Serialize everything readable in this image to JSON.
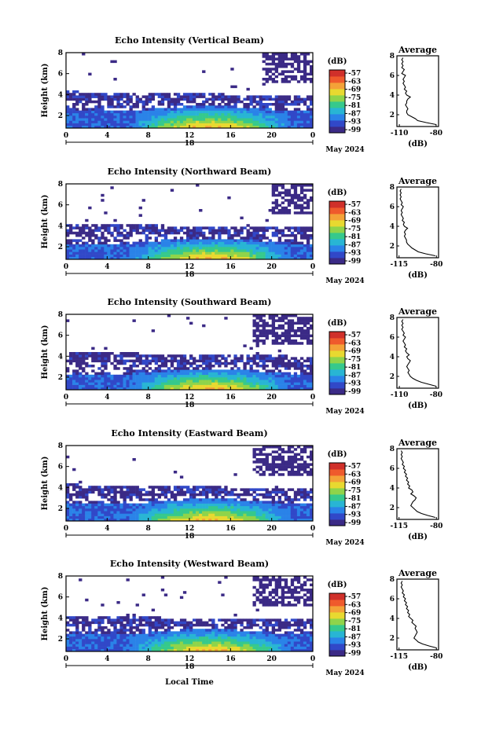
{
  "colors": {
    "background": "#ffffff",
    "colorbar": [
      "#3b2a86",
      "#3148c8",
      "#2a83e8",
      "#28b5d4",
      "#36c98c",
      "#8fd44a",
      "#e8d930",
      "#f4a238",
      "#ef5a2c",
      "#d0302a"
    ]
  },
  "chart_data": [
    {
      "type": "heatmap",
      "title": "Echo Intensity (Vertical Beam)",
      "ylabel": "Height (km)",
      "xlabel": "",
      "x_ticks": [
        "0",
        "4",
        "8",
        "12",
        "16",
        "20",
        "0"
      ],
      "y_ticks": [
        "2",
        "4",
        "6",
        "8"
      ],
      "xlim": [
        0,
        24
      ],
      "ylim": [
        0.8,
        8.0
      ],
      "date_day": "18",
      "date_label": "May 2024",
      "colorbar": {
        "unit": "(dB)",
        "ticks": [
          "-57",
          "-63",
          "-69",
          "-75",
          "-81",
          "-87",
          "-93",
          "-99"
        ]
      },
      "layers": {
        "lower_top": 2.4,
        "middle_band_low": 3.4,
        "middle_band_high": 4.3,
        "upper_clutter_start_hour": 19
      },
      "average": {
        "title": "Average",
        "xlabel": "(dB)",
        "x_ticks": [
          "-110",
          "-80"
        ],
        "xlim": [
          -112,
          -78
        ],
        "y_ticks": [
          "2",
          "4",
          "6",
          "8"
        ],
        "ylim": [
          0.8,
          8.0
        ],
        "heights": [
          1.0,
          1.2,
          1.4,
          1.6,
          1.8,
          2.0,
          2.2,
          2.4,
          2.6,
          2.8,
          3.0,
          3.2,
          3.4,
          3.6,
          3.8,
          4.0,
          4.2,
          4.4,
          4.6,
          4.8,
          5.0,
          5.2,
          5.4,
          5.6,
          5.8,
          6.0,
          6.2,
          6.4,
          6.6,
          6.8,
          7.0,
          7.2,
          7.4,
          7.6,
          7.8
        ],
        "values": [
          -80,
          -88,
          -95,
          -97,
          -100,
          -103,
          -104,
          -104,
          -103,
          -104,
          -105,
          -104,
          -104,
          -103,
          -101,
          -104,
          -105,
          -104,
          -106,
          -105,
          -106,
          -107,
          -106,
          -107,
          -106,
          -105,
          -108,
          -107,
          -106,
          -108,
          -107,
          -108,
          -107,
          -108,
          -107
        ]
      }
    },
    {
      "type": "heatmap",
      "title": "Echo Intensity (Northward Beam)",
      "ylabel": "Height (km)",
      "xlabel": "",
      "x_ticks": [
        "0",
        "4",
        "8",
        "12",
        "16",
        "20",
        "0"
      ],
      "y_ticks": [
        "2",
        "4",
        "6",
        "8"
      ],
      "xlim": [
        0,
        24
      ],
      "ylim": [
        0.8,
        8.0
      ],
      "date_day": "18",
      "date_label": "May 2024",
      "colorbar": {
        "unit": "(dB)",
        "ticks": [
          "-57",
          "-63",
          "-69",
          "-75",
          "-81",
          "-87",
          "-93",
          "-99"
        ]
      },
      "layers": {
        "lower_top": 2.3,
        "middle_band_low": 3.3,
        "middle_band_high": 4.2,
        "upper_clutter_start_hour": 20
      },
      "average": {
        "title": "Average",
        "xlabel": "(dB)",
        "x_ticks": [
          "-115",
          "-80"
        ],
        "xlim": [
          -117,
          -78
        ],
        "y_ticks": [
          "2",
          "4",
          "6",
          "8"
        ],
        "ylim": [
          0.8,
          8.0
        ],
        "heights": [
          1.0,
          1.2,
          1.4,
          1.6,
          1.8,
          2.0,
          2.2,
          2.4,
          2.6,
          2.8,
          3.0,
          3.2,
          3.4,
          3.6,
          3.8,
          4.0,
          4.2,
          4.4,
          4.6,
          4.8,
          5.0,
          5.2,
          5.4,
          5.6,
          5.8,
          6.0,
          6.2,
          6.4,
          6.6,
          6.8,
          7.0,
          7.2,
          7.4,
          7.6,
          7.8
        ],
        "values": [
          -81,
          -90,
          -97,
          -100,
          -103,
          -105,
          -107,
          -108,
          -108,
          -109,
          -110,
          -109,
          -110,
          -109,
          -107,
          -110,
          -111,
          -110,
          -112,
          -111,
          -112,
          -113,
          -112,
          -113,
          -112,
          -111,
          -113,
          -112,
          -113,
          -114,
          -113,
          -114,
          -113,
          -114,
          -113
        ]
      }
    },
    {
      "type": "heatmap",
      "title": "Echo Intensity (Southward Beam)",
      "ylabel": "Height (km)",
      "xlabel": "",
      "x_ticks": [
        "0",
        "4",
        "8",
        "12",
        "16",
        "20",
        "0"
      ],
      "y_ticks": [
        "2",
        "4",
        "6",
        "8"
      ],
      "xlim": [
        0,
        24
      ],
      "ylim": [
        0.8,
        8.0
      ],
      "date_day": "18",
      "date_label": "May 2024",
      "colorbar": {
        "unit": "(dB)",
        "ticks": [
          "-57",
          "-63",
          "-69",
          "-75",
          "-81",
          "-87",
          "-93",
          "-99"
        ]
      },
      "layers": {
        "lower_top": 2.3,
        "middle_band_low": 3.4,
        "middle_band_high": 4.4,
        "upper_clutter_start_hour": 18
      },
      "average": {
        "title": "Average",
        "xlabel": "(dB)",
        "x_ticks": [
          "-110",
          "-80"
        ],
        "xlim": [
          -112,
          -78
        ],
        "y_ticks": [
          "2",
          "4",
          "6",
          "8"
        ],
        "ylim": [
          0.8,
          8.0
        ],
        "heights": [
          1.0,
          1.2,
          1.4,
          1.6,
          1.8,
          2.0,
          2.2,
          2.4,
          2.6,
          2.8,
          3.0,
          3.2,
          3.4,
          3.6,
          3.8,
          4.0,
          4.2,
          4.4,
          4.6,
          4.8,
          5.0,
          5.2,
          5.4,
          5.6,
          5.8,
          6.0,
          6.2,
          6.4,
          6.6,
          6.8,
          7.0,
          7.2,
          7.4,
          7.6,
          7.8
        ],
        "values": [
          -80,
          -86,
          -92,
          -96,
          -99,
          -101,
          -102,
          -103,
          -102,
          -103,
          -104,
          -103,
          -102,
          -101,
          -103,
          -104,
          -102,
          -104,
          -105,
          -104,
          -106,
          -105,
          -106,
          -107,
          -106,
          -105,
          -107,
          -106,
          -107,
          -108,
          -107,
          -108,
          -107,
          -108,
          -107
        ]
      }
    },
    {
      "type": "heatmap",
      "title": "Echo Intensity (Eastward Beam)",
      "ylabel": "Height (km)",
      "xlabel": "",
      "x_ticks": [
        "0",
        "4",
        "8",
        "12",
        "16",
        "20",
        "0"
      ],
      "y_ticks": [
        "2",
        "4",
        "6",
        "8"
      ],
      "xlim": [
        0,
        24
      ],
      "ylim": [
        0.8,
        8.0
      ],
      "date_day": "18",
      "date_label": "May 2024",
      "colorbar": {
        "unit": "(dB)",
        "ticks": [
          "-57",
          "-63",
          "-69",
          "-75",
          "-81",
          "-87",
          "-93",
          "-99"
        ]
      },
      "layers": {
        "lower_top": 2.4,
        "middle_band_low": 3.4,
        "middle_band_high": 4.3,
        "upper_clutter_start_hour": 18
      },
      "average": {
        "title": "Average",
        "xlabel": "(dB)",
        "x_ticks": [
          "-115",
          "-80"
        ],
        "xlim": [
          -117,
          -78
        ],
        "y_ticks": [
          "2",
          "4",
          "6",
          "8"
        ],
        "ylim": [
          0.8,
          8.0
        ],
        "heights": [
          1.0,
          1.2,
          1.4,
          1.6,
          1.8,
          2.0,
          2.2,
          2.4,
          2.6,
          2.8,
          3.0,
          3.2,
          3.4,
          3.6,
          3.8,
          4.0,
          4.2,
          4.4,
          4.6,
          4.8,
          5.0,
          5.2,
          5.4,
          5.6,
          5.8,
          6.0,
          6.2,
          6.4,
          6.6,
          6.8,
          7.0,
          7.2,
          7.4,
          7.6,
          7.8
        ],
        "values": [
          -81,
          -88,
          -94,
          -98,
          -100,
          -102,
          -104,
          -103,
          -102,
          -100,
          -99,
          -101,
          -104,
          -102,
          -103,
          -106,
          -105,
          -107,
          -106,
          -108,
          -107,
          -109,
          -108,
          -110,
          -109,
          -111,
          -110,
          -112,
          -111,
          -112,
          -113,
          -112,
          -113,
          -112,
          -113
        ]
      }
    },
    {
      "type": "heatmap",
      "title": "Echo Intensity (Westward Beam)",
      "ylabel": "Height (km)",
      "xlabel": "Local Time",
      "x_ticks": [
        "0",
        "4",
        "8",
        "12",
        "16",
        "20",
        "0"
      ],
      "y_ticks": [
        "2",
        "4",
        "6",
        "8"
      ],
      "xlim": [
        0,
        24
      ],
      "ylim": [
        0.8,
        8.0
      ],
      "date_day": "18",
      "date_label": "May 2024",
      "colorbar": {
        "unit": "(dB)",
        "ticks": [
          "-57",
          "-63",
          "-69",
          "-75",
          "-81",
          "-87",
          "-93",
          "-99"
        ]
      },
      "layers": {
        "lower_top": 2.4,
        "middle_band_low": 3.4,
        "middle_band_high": 4.2,
        "upper_clutter_start_hour": 18
      },
      "average": {
        "title": "Average",
        "xlabel": "(dB)",
        "x_ticks": [
          "-115",
          "-80"
        ],
        "xlim": [
          -117,
          -78
        ],
        "y_ticks": [
          "2",
          "4",
          "6",
          "8"
        ],
        "ylim": [
          0.8,
          8.0
        ],
        "heights": [
          1.0,
          1.2,
          1.4,
          1.6,
          1.8,
          2.0,
          2.2,
          2.4,
          2.6,
          2.8,
          3.0,
          3.2,
          3.4,
          3.6,
          3.8,
          4.0,
          4.2,
          4.4,
          4.6,
          4.8,
          5.0,
          5.2,
          5.4,
          5.6,
          5.8,
          6.0,
          6.2,
          6.4,
          6.6,
          6.8,
          7.0,
          7.2,
          7.4,
          7.6,
          7.8
        ],
        "values": [
          -80,
          -87,
          -93,
          -97,
          -99,
          -101,
          -100,
          -99,
          -98,
          -99,
          -100,
          -99,
          -101,
          -103,
          -102,
          -104,
          -106,
          -105,
          -107,
          -106,
          -108,
          -107,
          -109,
          -108,
          -110,
          -109,
          -111,
          -110,
          -112,
          -111,
          -112,
          -113,
          -112,
          -113,
          -112
        ]
      }
    }
  ]
}
